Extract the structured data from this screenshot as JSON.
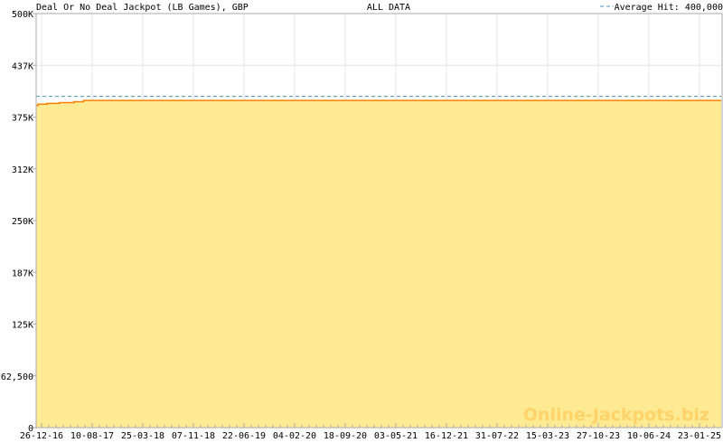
{
  "chart_data": {
    "type": "area",
    "title": "Deal Or No Deal Jackpot (LB Games), GBP",
    "subtitle": "ALL DATA",
    "legend": {
      "label": "Average Hit: 400,000",
      "placement": "top-right",
      "style": "dashed"
    },
    "average_hit": 400000,
    "ylim": [
      0,
      500000
    ],
    "y_ticks": [
      {
        "value": 0,
        "label": "0"
      },
      {
        "value": 62500,
        "label": "62,500"
      },
      {
        "value": 125000,
        "label": "125K"
      },
      {
        "value": 187500,
        "label": "187K"
      },
      {
        "value": 250000,
        "label": "250K"
      },
      {
        "value": 312500,
        "label": "312K"
      },
      {
        "value": 375000,
        "label": "375K"
      },
      {
        "value": 437500,
        "label": "437K"
      },
      {
        "value": 500000,
        "label": "500K"
      }
    ],
    "x_ticks": [
      "26-12-16",
      "10-08-17",
      "25-03-18",
      "07-11-18",
      "22-06-19",
      "04-02-20",
      "18-09-20",
      "03-05-21",
      "16-12-21",
      "31-07-22",
      "15-03-23",
      "27-10-23",
      "10-06-24",
      "23-01-25"
    ],
    "xlim": [
      "2016-12-02",
      "2025-04-11"
    ],
    "grid": true,
    "series": [
      {
        "points": [
          {
            "x": "2016-12-02",
            "y": 389000
          },
          {
            "x": "2016-12-10",
            "y": 390500
          },
          {
            "x": "2017-01-20",
            "y": 391500
          },
          {
            "x": "2017-03-15",
            "y": 392500
          },
          {
            "x": "2017-05-20",
            "y": 393500
          },
          {
            "x": "2017-07-01",
            "y": 395000
          },
          {
            "x": "2025-04-11",
            "y": 395000
          }
        ]
      }
    ],
    "colors": {
      "fill": "#feea92",
      "line": "#ff8000",
      "average": "#4a90b8",
      "grid": "#e6e6e6",
      "axis": "#aaaaaa",
      "watermark": "#ffd36a"
    },
    "watermark": "Online-Jackpots.biz"
  }
}
